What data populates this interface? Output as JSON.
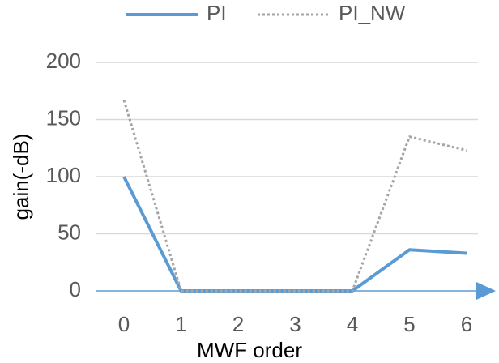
{
  "chart_data": {
    "type": "line",
    "categories": [
      "0",
      "1",
      "2",
      "3",
      "4",
      "5",
      "6"
    ],
    "series": [
      {
        "name": "PI",
        "color": "#5b9bd5",
        "values": [
          100,
          0,
          0,
          0,
          0,
          36,
          33
        ],
        "dash": false
      },
      {
        "name": "PI_NW",
        "color": "#a5a5a5",
        "values": [
          167,
          0,
          0,
          0,
          0,
          135,
          123
        ],
        "dash": true
      }
    ],
    "xlabel": "MWF order",
    "ylabel": "gain(-dB)",
    "ylim": [
      0,
      200
    ],
    "yticks": [
      0,
      50,
      100,
      150,
      200
    ],
    "grid": true,
    "legend": "top"
  }
}
